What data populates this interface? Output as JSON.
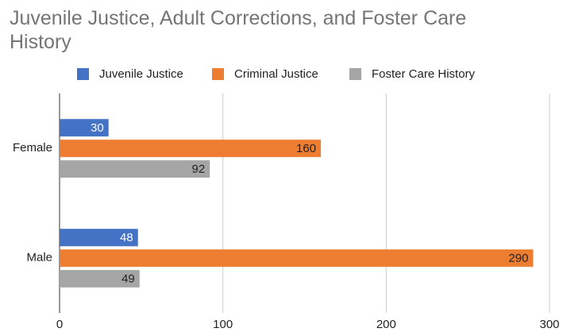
{
  "chart_data": {
    "type": "hbar",
    "title": "Juvenile Justice, Adult Corrections, and Foster Care History",
    "categories": [
      "Female",
      "Male"
    ],
    "series": [
      {
        "name": "Juvenile Justice",
        "color": "#4472c4",
        "values": [
          30,
          48
        ]
      },
      {
        "name": "Criminal Justice",
        "color": "#ed7d31",
        "values": [
          160,
          290
        ]
      },
      {
        "name": "Foster Care History",
        "color": "#a5a5a5",
        "values": [
          92,
          49
        ]
      }
    ],
    "xlim": [
      0,
      300
    ],
    "xticks": [
      0,
      100,
      200,
      300
    ],
    "grid": true,
    "legend": "top"
  }
}
